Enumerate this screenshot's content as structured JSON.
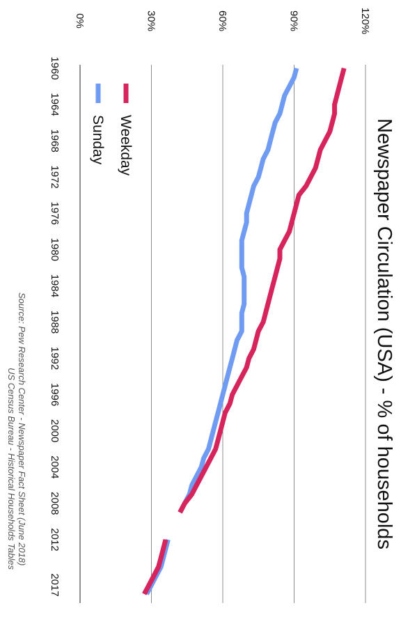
{
  "chart_data": {
    "type": "line",
    "title": "Newspaper Circulation (USA) - % of households",
    "xlabel": "",
    "ylabel": "",
    "x_ticks": [
      "1960",
      "1964",
      "1968",
      "1972",
      "1976",
      "1980",
      "1984",
      "1988",
      "1992",
      "1996",
      "2000",
      "2004",
      "2008",
      "2012",
      "2017"
    ],
    "y_ticks": [
      "0%",
      "30%",
      "60%",
      "90%",
      "120%"
    ],
    "xlim": [
      1960,
      2017
    ],
    "ylim": [
      0,
      120
    ],
    "grid": true,
    "legend_position": "top-left",
    "series": [
      {
        "name": "Weekday",
        "color": "#d6245c",
        "segments": [
          [
            [
              1960,
              111
            ],
            [
              1961,
              110
            ],
            [
              1962,
              109
            ],
            [
              1963,
              108
            ],
            [
              1964,
              107
            ],
            [
              1965,
              107
            ],
            [
              1966,
              106
            ],
            [
              1967,
              105
            ],
            [
              1968,
              103
            ],
            [
              1969,
              101
            ],
            [
              1970,
              100
            ],
            [
              1971,
              99
            ],
            [
              1972,
              97
            ],
            [
              1973,
              95
            ],
            [
              1974,
              92
            ],
            [
              1975,
              91
            ],
            [
              1976,
              90
            ],
            [
              1977,
              89
            ],
            [
              1978,
              88
            ],
            [
              1979,
              86
            ],
            [
              1980,
              84
            ],
            [
              1981,
              84
            ],
            [
              1982,
              83
            ],
            [
              1983,
              82
            ],
            [
              1984,
              81
            ],
            [
              1985,
              80
            ],
            [
              1986,
              79
            ],
            [
              1987,
              78
            ],
            [
              1988,
              77
            ],
            [
              1989,
              75
            ],
            [
              1990,
              74
            ],
            [
              1991,
              73
            ],
            [
              1992,
              71
            ],
            [
              1993,
              70
            ],
            [
              1994,
              68
            ],
            [
              1995,
              66
            ],
            [
              1996,
              64
            ],
            [
              1997,
              63
            ],
            [
              1998,
              61
            ],
            [
              1999,
              60
            ],
            [
              2000,
              59
            ],
            [
              2001,
              58
            ],
            [
              2002,
              57
            ],
            [
              2003,
              55
            ],
            [
              2004,
              53
            ],
            [
              2005,
              51
            ],
            [
              2006,
              49
            ],
            [
              2007,
              47
            ],
            [
              2008,
              44
            ],
            [
              2009,
              42
            ]
          ],
          [
            [
              2012,
              36
            ],
            [
              2013,
              35
            ],
            [
              2014,
              34
            ],
            [
              2015,
              33
            ],
            [
              2016,
              31
            ],
            [
              2017,
              29
            ],
            [
              2018,
              27
            ]
          ]
        ]
      },
      {
        "name": "Sunday",
        "color": "#6f9bf2",
        "segments": [
          [
            [
              1960,
              91
            ],
            [
              1961,
              90
            ],
            [
              1962,
              88
            ],
            [
              1963,
              86
            ],
            [
              1964,
              85
            ],
            [
              1965,
              84
            ],
            [
              1966,
              82
            ],
            [
              1967,
              81
            ],
            [
              1968,
              80
            ],
            [
              1969,
              79
            ],
            [
              1970,
              77
            ],
            [
              1971,
              76
            ],
            [
              1972,
              75
            ],
            [
              1973,
              73
            ],
            [
              1974,
              72
            ],
            [
              1975,
              71
            ],
            [
              1976,
              70
            ],
            [
              1977,
              70
            ],
            [
              1978,
              69
            ],
            [
              1979,
              68
            ],
            [
              1980,
              68
            ],
            [
              1981,
              68
            ],
            [
              1982,
              68
            ],
            [
              1983,
              69
            ],
            [
              1984,
              69
            ],
            [
              1985,
              69
            ],
            [
              1986,
              69
            ],
            [
              1987,
              68
            ],
            [
              1988,
              68
            ],
            [
              1989,
              68
            ],
            [
              1990,
              66
            ],
            [
              1991,
              65
            ],
            [
              1992,
              64
            ],
            [
              1993,
              63
            ],
            [
              1994,
              62
            ],
            [
              1995,
              61
            ],
            [
              1996,
              60
            ],
            [
              1997,
              59
            ],
            [
              1998,
              58
            ],
            [
              1999,
              57
            ],
            [
              2000,
              56
            ],
            [
              2001,
              55
            ],
            [
              2002,
              54
            ],
            [
              2003,
              52
            ],
            [
              2004,
              51
            ],
            [
              2005,
              49
            ],
            [
              2006,
              47
            ],
            [
              2007,
              46
            ],
            [
              2008,
              44
            ],
            [
              2009,
              42
            ]
          ],
          [
            [
              2012,
              37
            ],
            [
              2013,
              36
            ],
            [
              2014,
              35
            ],
            [
              2015,
              34
            ],
            [
              2016,
              32
            ],
            [
              2017,
              30
            ],
            [
              2018,
              28
            ]
          ]
        ]
      }
    ]
  },
  "source": {
    "line1": "Source: Pew Research Center - Newspaper Fact Sheet (June 2018)",
    "line2": "US Census Bureau - Historical Households Tables"
  }
}
